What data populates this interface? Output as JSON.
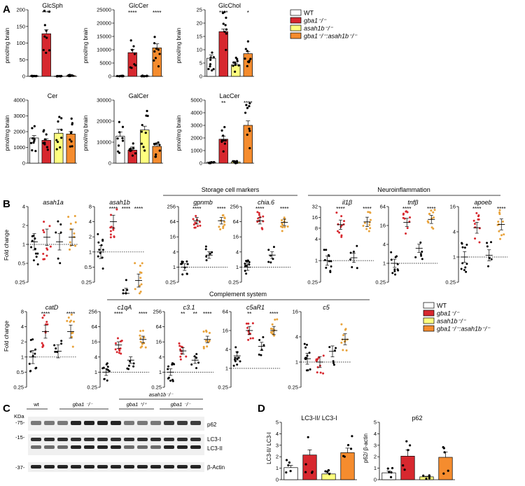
{
  "panel_labels": {
    "A": "A",
    "B": "B",
    "C": "C",
    "D": "D"
  },
  "colors": {
    "WT": "#ffffff",
    "gba1": "#d7282f",
    "asah1b": "#ffff7f",
    "double": "#f58c2e",
    "WT_dot": "#000000",
    "gba1_dot": "#d7282f",
    "asah1b_dot": "#000000",
    "double_dot": "#e8a23a"
  },
  "legend": {
    "entries": [
      {
        "label": "WT",
        "color": "#ffffff"
      },
      {
        "label": "gba1⁻/⁻",
        "color": "#d7282f"
      },
      {
        "label": "asah1b⁻/⁻",
        "color": "#ffff7f"
      },
      {
        "label": "gba1⁻/⁻:asah1b⁻/⁻",
        "color": "#f58c2e"
      }
    ]
  },
  "panelA_ylabel": "pmol/mg brain",
  "panelB_ylabel": "Fold change",
  "panelD_ylabel_1": "LC3-II/ LC3-I",
  "panelD_ylabel_2": "p62/ β-actin",
  "group_labels": {
    "storage": "Storage cell markers",
    "neuro": "Neuroinflammation",
    "complement": "Complement system"
  },
  "chart_data": [
    {
      "type": "bar",
      "title": "GlcSph",
      "categories": [
        "WT",
        "gba1",
        "asah1b",
        "gba1:asah1b"
      ],
      "values": [
        1,
        128,
        0.5,
        2
      ],
      "errors": [
        0.5,
        12,
        0.3,
        1
      ],
      "ylim": [
        0,
        200
      ],
      "yticks": [
        "0",
        "50",
        "100",
        "150",
        "200"
      ],
      "stars": [
        "",
        "****",
        "",
        ""
      ]
    },
    {
      "type": "bar",
      "title": "GlcCer",
      "categories": [
        "WT",
        "gba1",
        "asah1b",
        "gba1:asah1b"
      ],
      "values": [
        100,
        8900,
        150,
        10700
      ],
      "errors": [
        50,
        1200,
        60,
        1500
      ],
      "ylim": [
        0,
        25000
      ],
      "yticks": [
        "0",
        "5000",
        "10000",
        "15000",
        "20000",
        "25000"
      ],
      "stars": [
        "",
        "****",
        "",
        "****"
      ]
    },
    {
      "type": "bar",
      "title": "GlcChol",
      "categories": [
        "WT",
        "gba1",
        "asah1b",
        "gba1:asah1b"
      ],
      "values": [
        6.8,
        16.8,
        4.3,
        8.5
      ],
      "errors": [
        1.2,
        1,
        0.6,
        0.8
      ],
      "ylim": [
        0,
        25
      ],
      "yticks": [
        "0",
        "5",
        "10",
        "15",
        "20",
        "25"
      ],
      "stars": [
        "",
        "****",
        "",
        "*"
      ]
    },
    {
      "type": "bar",
      "title": "Cer",
      "categories": [
        "WT",
        "gba1",
        "asah1b",
        "gba1:asah1b"
      ],
      "values": [
        1600,
        1450,
        1900,
        1850
      ],
      "errors": [
        150,
        100,
        250,
        150
      ],
      "ylim": [
        0,
        4000
      ],
      "yticks": [
        "0",
        "1000",
        "2000",
        "3000",
        "4000"
      ],
      "stars": [
        "",
        "",
        "",
        ""
      ]
    },
    {
      "type": "bar",
      "title": "GalCer",
      "categories": [
        "WT",
        "gba1",
        "asah1b",
        "gba1:asah1b"
      ],
      "values": [
        12800,
        6200,
        15800,
        8000
      ],
      "errors": [
        2000,
        1500,
        1800,
        1000
      ],
      "ylim": [
        0,
        30000
      ],
      "yticks": [
        "0",
        "10000",
        "20000",
        "30000"
      ],
      "stars": [
        "",
        "",
        "",
        ""
      ]
    },
    {
      "type": "bar",
      "title": "LacCer",
      "categories": [
        "WT",
        "gba1",
        "asah1b",
        "gba1:asah1b"
      ],
      "values": [
        80,
        1900,
        100,
        3000
      ],
      "errors": [
        30,
        250,
        40,
        350
      ],
      "ylim": [
        0,
        5000
      ],
      "yticks": [
        "0",
        "1000",
        "2000",
        "3000",
        "4000",
        "5000"
      ],
      "stars": [
        "",
        "**",
        "",
        "****"
      ]
    },
    {
      "type": "scatter",
      "title": "asah1a",
      "log": true,
      "ylim": [
        0.25,
        4
      ],
      "yticks": [
        "0.25",
        "0.5",
        "1",
        "2",
        "4"
      ],
      "means": [
        1.1,
        1.3,
        1.1,
        1.3
      ],
      "stars": [
        "",
        "",
        "",
        ""
      ]
    },
    {
      "type": "scatter",
      "title": "asah1b",
      "log": true,
      "ylim": [
        0.25,
        8
      ],
      "yticks": [
        "0.25",
        "0.5",
        "1",
        "2",
        "4",
        "8"
      ],
      "means": [
        1.0,
        4.0,
        0.14,
        0.27
      ],
      "stars": [
        "",
        "****",
        "****",
        "****"
      ]
    },
    {
      "type": "scatter",
      "title": "gpnmb",
      "log": true,
      "ylim": [
        0.25,
        256
      ],
      "yticks": [
        "0.25",
        "1",
        "4",
        "16",
        "64",
        "256"
      ],
      "means": [
        1.0,
        70,
        3,
        70
      ],
      "stars": [
        "",
        "****",
        "",
        "****"
      ]
    },
    {
      "type": "scatter",
      "title": "chia.6",
      "log": true,
      "ylim": [
        0.25,
        256
      ],
      "yticks": [
        "0.25",
        "1",
        "4",
        "16",
        "64",
        "256"
      ],
      "means": [
        1.0,
        70,
        3,
        60
      ],
      "stars": [
        "",
        "****",
        "",
        "****"
      ]
    },
    {
      "type": "scatter",
      "title": "il1β",
      "log": true,
      "ylim": [
        0.25,
        32
      ],
      "yticks": [
        "0.25",
        "1",
        "4",
        "8",
        "16",
        "32"
      ],
      "means": [
        1.0,
        10,
        1.2,
        12
      ],
      "stars": [
        "",
        "****",
        "",
        "****"
      ]
    },
    {
      "type": "scatter",
      "title": "tnfβ",
      "log": true,
      "ylim": [
        0.25,
        64
      ],
      "yticks": [
        "0.25",
        "1",
        "4",
        "16",
        "64"
      ],
      "means": [
        1.0,
        20,
        3,
        25
      ],
      "stars": [
        "",
        "****",
        "",
        "****"
      ]
    },
    {
      "type": "scatter",
      "title": "apoeb",
      "log": true,
      "ylim": [
        0.25,
        16
      ],
      "yticks": [
        "0.25",
        "1",
        "4",
        "16"
      ],
      "means": [
        1.0,
        5,
        1.1,
        6
      ],
      "stars": [
        "",
        "****",
        "",
        "****"
      ]
    },
    {
      "type": "scatter",
      "title": "catD",
      "log": true,
      "ylim": [
        0.25,
        8
      ],
      "yticks": [
        "0.25",
        "0.5",
        "1",
        "2",
        "4",
        "8"
      ],
      "means": [
        1.0,
        3.2,
        1.3,
        3.2
      ],
      "stars": [
        "",
        "****",
        "",
        "****"
      ]
    },
    {
      "type": "scatter",
      "title": "c1qA",
      "log": true,
      "ylim": [
        0.25,
        256
      ],
      "yticks": [
        "0.25",
        "1",
        "4",
        "16",
        "64",
        "256"
      ],
      "means": [
        1.0,
        12,
        3,
        20
      ],
      "stars": [
        "",
        "****",
        "",
        "****"
      ]
    },
    {
      "type": "scatter",
      "title": "c3.1",
      "log": true,
      "ylim": [
        0.25,
        256
      ],
      "yticks": [
        "0.25",
        "1",
        "4",
        "16",
        "64",
        "256"
      ],
      "means": [
        1.0,
        7,
        3,
        20
      ],
      "stars": [
        "",
        "**",
        "**",
        "****"
      ]
    },
    {
      "type": "scatter",
      "title": "c5aR1",
      "log": true,
      "ylim": [
        0.25,
        64
      ],
      "yticks": [
        "0.25",
        "1",
        "4",
        "16",
        "64"
      ],
      "means": [
        2.5,
        16,
        5,
        16
      ],
      "stars": [
        "",
        "**",
        "",
        "****"
      ]
    },
    {
      "type": "scatter",
      "title": "c5",
      "log": true,
      "ylim": [
        0.25,
        16
      ],
      "yticks": [
        "0.25",
        "1",
        "4",
        "16"
      ],
      "means": [
        1.2,
        1.0,
        1.8,
        3.5
      ],
      "stars": [
        "",
        "",
        "",
        ""
      ]
    },
    {
      "type": "bar",
      "title": "LC3-II/ LC3-I",
      "categories": [
        "WT",
        "gba1",
        "asah1b",
        "gba1:asah1b"
      ],
      "values": [
        1.05,
        2.15,
        0.5,
        2.35
      ],
      "errors": [
        0.2,
        0.45,
        0.08,
        0.4
      ],
      "ylim": [
        0,
        5
      ],
      "yticks": [
        "0",
        "1",
        "2",
        "3",
        "4",
        "5"
      ],
      "stars": [
        "",
        "",
        "",
        ""
      ]
    },
    {
      "type": "bar",
      "title": "p62",
      "categories": [
        "WT",
        "gba1",
        "asah1b",
        "gba1:asah1b"
      ],
      "values": [
        0.6,
        2.05,
        0.25,
        1.95
      ],
      "errors": [
        0.15,
        0.55,
        0.05,
        0.45
      ],
      "ylim": [
        0,
        5
      ],
      "yticks": [
        "0",
        "1",
        "2",
        "3",
        "4",
        "5"
      ],
      "stars": [
        "",
        "",
        "",
        ""
      ]
    }
  ],
  "blot": {
    "kda_label": "KDa",
    "markers": [
      "-75-",
      "-15-",
      "-37-"
    ],
    "lanes": {
      "wt": "wt",
      "gba1": "gba1 ⁻/⁻",
      "gba1_pp": "gba1 ⁺/⁺",
      "gba1_mm": "gba1 ⁻/⁻",
      "asah1b": "asah1b⁻/⁻"
    },
    "bands": [
      "p62",
      "LC3-I",
      "LC3-II",
      "β-Actin"
    ]
  }
}
